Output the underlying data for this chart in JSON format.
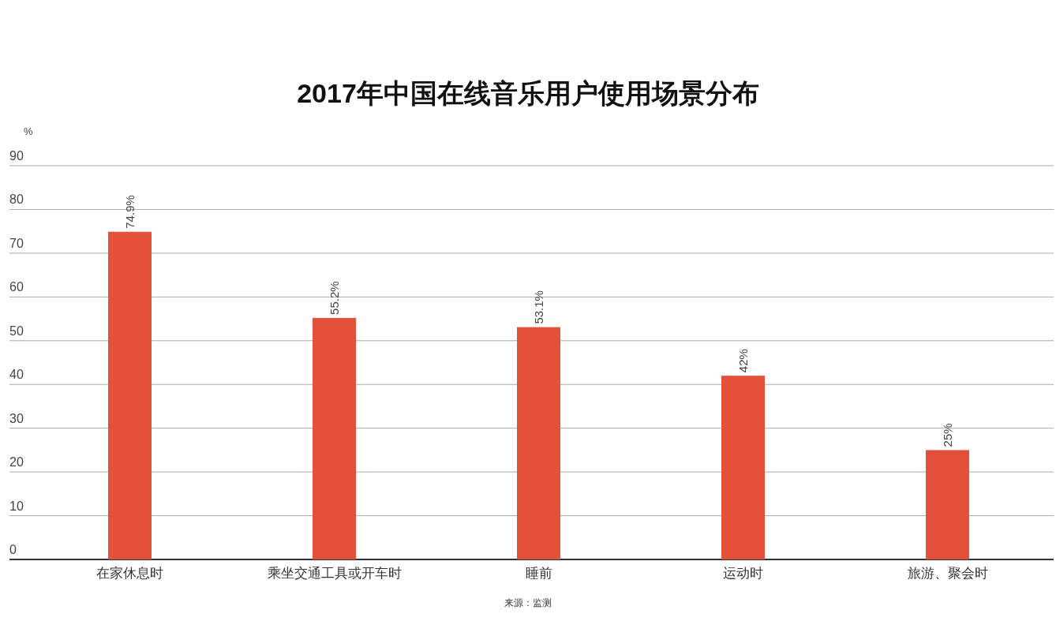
{
  "chart_data": {
    "type": "bar",
    "title": "2017年中国在线音乐用户使用场景分布",
    "ylabel": "%",
    "categories": [
      "在家休息时",
      "乘坐交通工具或开车时",
      "睡前",
      "运动时",
      "旅游、聚会时"
    ],
    "values": [
      74.9,
      55.2,
      53.1,
      42,
      25
    ],
    "value_labels": [
      "74.9%",
      "55.2%",
      "53.1%",
      "42%",
      "25%"
    ],
    "color": "#e4513a",
    "ylim": [
      0,
      90
    ],
    "yticks": [
      0,
      10,
      20,
      30,
      40,
      50,
      60,
      70,
      80,
      90
    ],
    "grid": "y",
    "annotations": [
      "来源：监测"
    ]
  }
}
